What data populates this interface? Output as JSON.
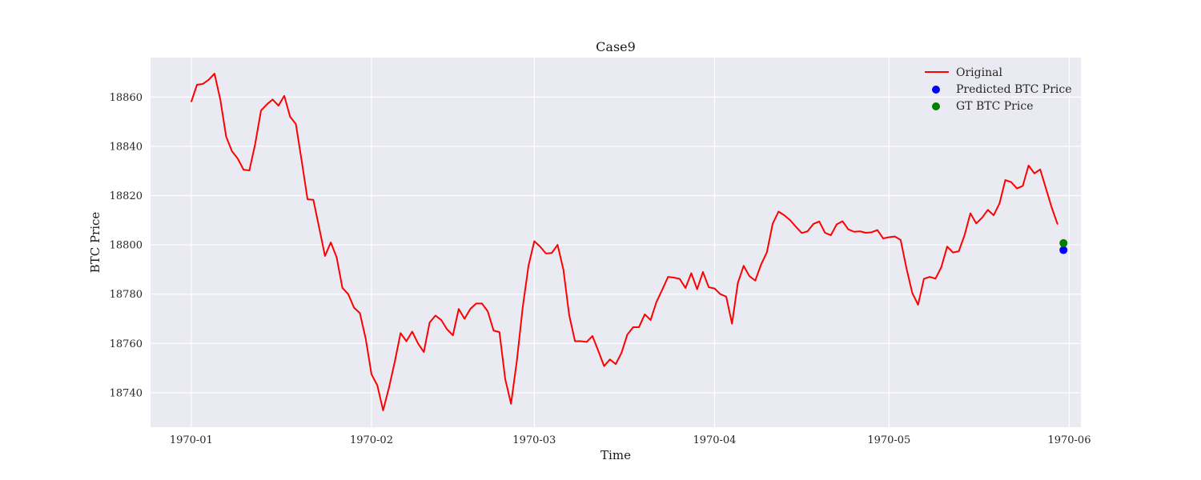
{
  "chart_data": {
    "type": "line",
    "title": "Case9",
    "xlabel": "Time",
    "ylabel": "BTC Price",
    "grid": true,
    "legend_position": "top-right",
    "xlim": [
      "1969-12-25",
      "1970-06-03"
    ],
    "ylim": [
      18726,
      18876
    ],
    "x_ticks": [
      "1970-01-01",
      "1970-02-01",
      "1970-03-01",
      "1970-04-01",
      "1970-05-01",
      "1970-06-01"
    ],
    "x_tick_labels": [
      "1970-01",
      "1970-02",
      "1970-03",
      "1970-04",
      "1970-05",
      "1970-06"
    ],
    "y_ticks": [
      18740,
      18760,
      18780,
      18800,
      18820,
      18840,
      18860
    ],
    "y_tick_labels": [
      "18740",
      "18760",
      "18780",
      "18800",
      "18820",
      "18840",
      "18860"
    ],
    "series": [
      {
        "name": "Original",
        "kind": "line",
        "color": "#ff0000",
        "points": [
          [
            "1970-01-01",
            18858
          ],
          [
            "1970-01-02",
            18865
          ],
          [
            "1970-01-03",
            18865.3
          ],
          [
            "1970-01-04",
            18867
          ],
          [
            "1970-01-05",
            18869.5
          ],
          [
            "1970-01-06",
            18859
          ],
          [
            "1970-01-07",
            18844
          ],
          [
            "1970-01-08",
            18838
          ],
          [
            "1970-01-09",
            18835
          ],
          [
            "1970-01-10",
            18830.5
          ],
          [
            "1970-01-11",
            18830.2
          ],
          [
            "1970-01-12",
            18841
          ],
          [
            "1970-01-13",
            18854.5
          ],
          [
            "1970-01-14",
            18857
          ],
          [
            "1970-01-15",
            18859
          ],
          [
            "1970-01-16",
            18856.5
          ],
          [
            "1970-01-17",
            18860.5
          ],
          [
            "1970-01-18",
            18852
          ],
          [
            "1970-01-19",
            18849
          ],
          [
            "1970-01-20",
            18834
          ],
          [
            "1970-01-21",
            18818.5
          ],
          [
            "1970-01-22",
            18818.3
          ],
          [
            "1970-01-23",
            18807
          ],
          [
            "1970-01-24",
            18795.5
          ],
          [
            "1970-01-25",
            18801
          ],
          [
            "1970-01-26",
            18795
          ],
          [
            "1970-01-27",
            18782.5
          ],
          [
            "1970-01-28",
            18780
          ],
          [
            "1970-01-29",
            18774.5
          ],
          [
            "1970-01-30",
            18772.3
          ],
          [
            "1970-01-31",
            18762
          ],
          [
            "1970-02-01",
            18747.5
          ],
          [
            "1970-02-02",
            18743
          ],
          [
            "1970-02-03",
            18732.8
          ],
          [
            "1970-02-04",
            18742
          ],
          [
            "1970-02-05",
            18752.5
          ],
          [
            "1970-02-06",
            18764.2
          ],
          [
            "1970-02-07",
            18760.9
          ],
          [
            "1970-02-08",
            18764.8
          ],
          [
            "1970-02-09",
            18760
          ],
          [
            "1970-02-10",
            18756.5
          ],
          [
            "1970-02-11",
            18768.5
          ],
          [
            "1970-02-12",
            18771.3
          ],
          [
            "1970-02-13",
            18769.5
          ],
          [
            "1970-02-14",
            18765.7
          ],
          [
            "1970-02-15",
            18763.3
          ],
          [
            "1970-02-16",
            18774
          ],
          [
            "1970-02-17",
            18770
          ],
          [
            "1970-02-18",
            18774
          ],
          [
            "1970-02-19",
            18776.2
          ],
          [
            "1970-02-20",
            18776.2
          ],
          [
            "1970-02-21",
            18773
          ],
          [
            "1970-02-22",
            18765.2
          ],
          [
            "1970-02-23",
            18764.6
          ],
          [
            "1970-02-24",
            18745.5
          ],
          [
            "1970-02-25",
            18735.5
          ],
          [
            "1970-02-26",
            18753
          ],
          [
            "1970-02-27",
            18774.5
          ],
          [
            "1970-02-28",
            18791.5
          ],
          [
            "1970-03-01",
            18801.5
          ],
          [
            "1970-03-02",
            18799.3
          ],
          [
            "1970-03-03",
            18796.5
          ],
          [
            "1970-03-04",
            18796.7
          ],
          [
            "1970-03-05",
            18800
          ],
          [
            "1970-03-06",
            18790
          ],
          [
            "1970-03-07",
            18771.5
          ],
          [
            "1970-03-08",
            18760.9
          ],
          [
            "1970-03-09",
            18760.9
          ],
          [
            "1970-03-10",
            18760.6
          ],
          [
            "1970-03-11",
            18763
          ],
          [
            "1970-03-12",
            18757
          ],
          [
            "1970-03-13",
            18750.8
          ],
          [
            "1970-03-14",
            18753.5
          ],
          [
            "1970-03-15",
            18751.6
          ],
          [
            "1970-03-16",
            18756.2
          ],
          [
            "1970-03-17",
            18763.6
          ],
          [
            "1970-03-18",
            18766.6
          ],
          [
            "1970-03-19",
            18766.6
          ],
          [
            "1970-03-20",
            18771.8
          ],
          [
            "1970-03-21",
            18769.5
          ],
          [
            "1970-03-22",
            18776.8
          ],
          [
            "1970-03-23",
            18781.8
          ],
          [
            "1970-03-24",
            18787
          ],
          [
            "1970-03-25",
            18786.7
          ],
          [
            "1970-03-26",
            18786.2
          ],
          [
            "1970-03-27",
            18782.5
          ],
          [
            "1970-03-28",
            18788.5
          ],
          [
            "1970-03-29",
            18782
          ],
          [
            "1970-03-30",
            18789
          ],
          [
            "1970-03-31",
            18782.8
          ],
          [
            "1970-04-01",
            18782.3
          ],
          [
            "1970-04-02",
            18780
          ],
          [
            "1970-04-03",
            18779
          ],
          [
            "1970-04-04",
            18768
          ],
          [
            "1970-04-05",
            18784.5
          ],
          [
            "1970-04-06",
            18791.5
          ],
          [
            "1970-04-07",
            18787.3
          ],
          [
            "1970-04-08",
            18785.5
          ],
          [
            "1970-04-09",
            18792
          ],
          [
            "1970-04-10",
            18797
          ],
          [
            "1970-04-11",
            18808.6
          ],
          [
            "1970-04-12",
            18813.5
          ],
          [
            "1970-04-13",
            18812
          ],
          [
            "1970-04-14",
            18810
          ],
          [
            "1970-04-15",
            18807.3
          ],
          [
            "1970-04-16",
            18804.8
          ],
          [
            "1970-04-17",
            18805.5
          ],
          [
            "1970-04-18",
            18808.5
          ],
          [
            "1970-04-19",
            18809.5
          ],
          [
            "1970-04-20",
            18804.9
          ],
          [
            "1970-04-21",
            18803.9
          ],
          [
            "1970-04-22",
            18808.3
          ],
          [
            "1970-04-23",
            18809.6
          ],
          [
            "1970-04-24",
            18806.3
          ],
          [
            "1970-04-25",
            18805.3
          ],
          [
            "1970-04-26",
            18805.5
          ],
          [
            "1970-04-27",
            18804.9
          ],
          [
            "1970-04-28",
            18805.1
          ],
          [
            "1970-04-29",
            18806
          ],
          [
            "1970-04-30",
            18802.6
          ],
          [
            "1970-05-01",
            18803.1
          ],
          [
            "1970-05-02",
            18803.4
          ],
          [
            "1970-05-03",
            18802
          ],
          [
            "1970-05-04",
            18790.5
          ],
          [
            "1970-05-05",
            18780.5
          ],
          [
            "1970-05-06",
            18775.7
          ],
          [
            "1970-05-07",
            18786.2
          ],
          [
            "1970-05-08",
            18787
          ],
          [
            "1970-05-09",
            18786.3
          ],
          [
            "1970-05-10",
            18791
          ],
          [
            "1970-05-11",
            18799.3
          ],
          [
            "1970-05-12",
            18796.9
          ],
          [
            "1970-05-13",
            18797.4
          ],
          [
            "1970-05-14",
            18804
          ],
          [
            "1970-05-15",
            18812.8
          ],
          [
            "1970-05-16",
            18808.7
          ],
          [
            "1970-05-17",
            18811
          ],
          [
            "1970-05-18",
            18814.2
          ],
          [
            "1970-05-19",
            18812
          ],
          [
            "1970-05-20",
            18816.8
          ],
          [
            "1970-05-21",
            18826.3
          ],
          [
            "1970-05-22",
            18825.5
          ],
          [
            "1970-05-23",
            18822.9
          ],
          [
            "1970-05-24",
            18823.9
          ],
          [
            "1970-05-25",
            18832.2
          ],
          [
            "1970-05-26",
            18829
          ],
          [
            "1970-05-27",
            18830.6
          ],
          [
            "1970-05-28",
            18822.8
          ],
          [
            "1970-05-29",
            18815
          ],
          [
            "1970-05-30",
            18808.3
          ]
        ]
      },
      {
        "name": "Predicted BTC Price",
        "kind": "scatter",
        "color": "#0000ff",
        "points": [
          [
            "1970-05-31",
            18797.9
          ]
        ]
      },
      {
        "name": "GT BTC Price",
        "kind": "scatter",
        "color": "#008000",
        "points": [
          [
            "1970-05-31",
            18800.7
          ]
        ]
      }
    ],
    "style": {
      "figure_bg": "#ffffff",
      "axes_bg": "#eaeaf2",
      "grid_color": "#ffffff"
    }
  }
}
